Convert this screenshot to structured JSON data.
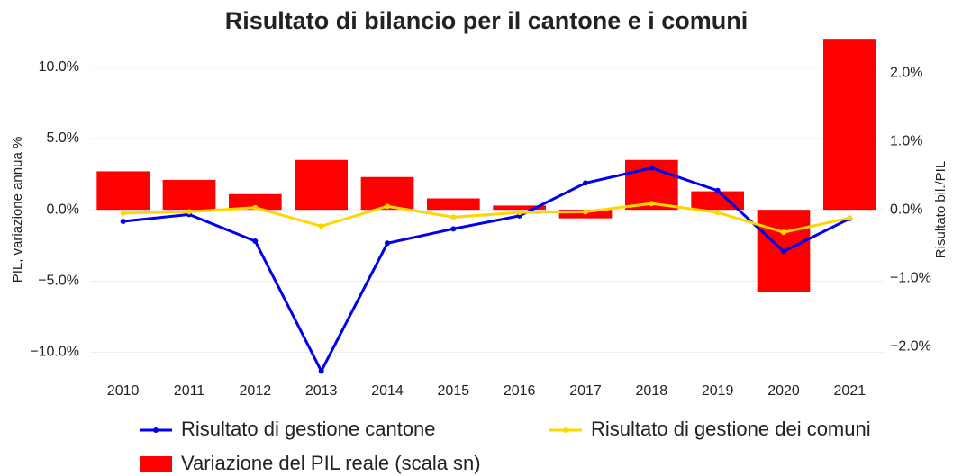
{
  "chart_data": {
    "type": "bar_line",
    "title": "Risultato di bilancio per il cantone e i comuni",
    "ylabel": "PIL, variazione annua %",
    "y2label": "Risultato bil./PIL",
    "categories": [
      "2010",
      "2011",
      "2012",
      "2013",
      "2014",
      "2015",
      "2016",
      "2017",
      "2018",
      "2019",
      "2020",
      "2021"
    ],
    "series": [
      {
        "name": "Variazione del PIL reale (scala sn)",
        "type": "bar",
        "color": "#ff0000",
        "axis": "y",
        "values": [
          2.7,
          2.1,
          1.1,
          3.5,
          2.3,
          0.8,
          0.3,
          -0.6,
          3.5,
          1.3,
          -5.8,
          12.0
        ]
      },
      {
        "name": "Risultato di gestione cantone",
        "type": "line",
        "color": "#0000ee",
        "axis": "y2",
        "values": [
          -0.17,
          -0.07,
          -0.46,
          -2.36,
          -0.49,
          -0.28,
          -0.09,
          0.39,
          0.61,
          0.28,
          -0.61,
          -0.13
        ]
      },
      {
        "name": "Risultato di gestione dei comuni",
        "type": "line",
        "color": "#ffd700",
        "axis": "y2",
        "values": [
          -0.05,
          -0.03,
          0.03,
          -0.24,
          0.05,
          -0.11,
          -0.04,
          -0.03,
          0.09,
          -0.04,
          -0.33,
          -0.12
        ]
      }
    ],
    "ylim": [
      -11.8,
      12.2
    ],
    "yticks": [
      {
        "value": -10,
        "label": "−10.0%"
      },
      {
        "value": -5,
        "label": "−5.0%"
      },
      {
        "value": 0,
        "label": "0.0%"
      },
      {
        "value": 5,
        "label": "5.0%"
      },
      {
        "value": 10,
        "label": "10.0%"
      }
    ],
    "y2lim": [
      -2.46,
      2.54
    ],
    "y2ticks": [
      {
        "value": -2,
        "label": "−2.0%"
      },
      {
        "value": -1,
        "label": "−1.0%"
      },
      {
        "value": 0,
        "label": "0.0%"
      },
      {
        "value": 1,
        "label": "1.0%"
      },
      {
        "value": 2,
        "label": "2.0%"
      }
    ],
    "grid": true
  }
}
